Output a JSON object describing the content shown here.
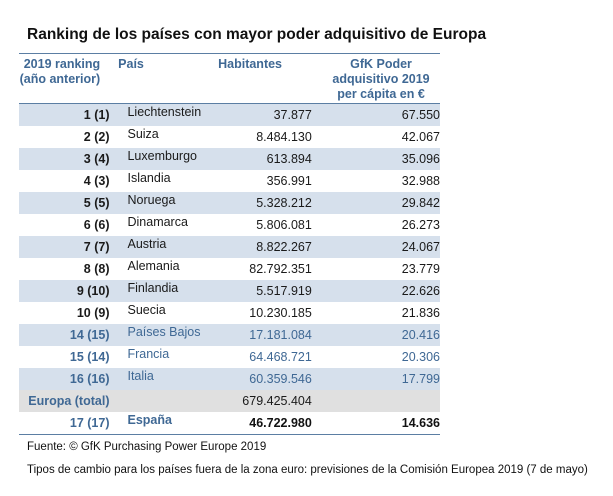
{
  "title": "Ranking de los países con mayor poder adquisitivo de Europa",
  "headers": {
    "rank_line1": "2019 ranking",
    "rank_line2": "(año anterior)",
    "country": "País",
    "inhabitants": "Habitantes",
    "power_line1": "GfK Poder",
    "power_line2": "adquisitivo 2019",
    "power_line3": "per cápita en €"
  },
  "rows": [
    {
      "rank": "1 (1)",
      "country": "Liechtenstein",
      "inhabitants": "37.877",
      "power": "67.550"
    },
    {
      "rank": "2 (2)",
      "country": "Suiza",
      "inhabitants": "8.484.130",
      "power": "42.067"
    },
    {
      "rank": "3 (4)",
      "country": "Luxemburgo",
      "inhabitants": "613.894",
      "power": "35.096"
    },
    {
      "rank": "4 (3)",
      "country": "Islandia",
      "inhabitants": "356.991",
      "power": "32.988"
    },
    {
      "rank": "5 (5)",
      "country": "Noruega",
      "inhabitants": "5.328.212",
      "power": "29.842"
    },
    {
      "rank": "6 (6)",
      "country": "Dinamarca",
      "inhabitants": "5.806.081",
      "power": "26.273"
    },
    {
      "rank": "7 (7)",
      "country": "Austria",
      "inhabitants": "8.822.267",
      "power": "24.067"
    },
    {
      "rank": "8 (8)",
      "country": "Alemania",
      "inhabitants": "82.792.351",
      "power": "23.779"
    },
    {
      "rank": "9 (10)",
      "country": "Finlandia",
      "inhabitants": "5.517.919",
      "power": "22.626"
    },
    {
      "rank": "10 (9)",
      "country": "Suecia",
      "inhabitants": "10.230.185",
      "power": "21.836"
    },
    {
      "rank": "14 (15)",
      "country": "Países Bajos",
      "inhabitants": "17.181.084",
      "power": "20.416"
    },
    {
      "rank": "15 (14)",
      "country": "Francia",
      "inhabitants": "64.468.721",
      "power": "20.306"
    },
    {
      "rank": "16 (16)",
      "country": "Italia",
      "inhabitants": "60.359.546",
      "power": "17.799"
    }
  ],
  "total": {
    "label": "Europa (total)",
    "inhabitants": "679.425.404"
  },
  "spain": {
    "rank": "17 (17)",
    "country": "España",
    "inhabitants": "46.722.980",
    "power": "14.636"
  },
  "footnotes": {
    "source": "Fuente: © GfK Purchasing Power Europe 2019",
    "exchange": "Tipos de cambio para los países fuera de la zona euro: previsiones de la Comisión Europea 2019 (7 de mayo)"
  },
  "colors": {
    "header_blue": "#3f6894",
    "row_shade": "#d6e0ec",
    "total_grey": "#e0e0e0",
    "rule": "#5b7ea3"
  }
}
